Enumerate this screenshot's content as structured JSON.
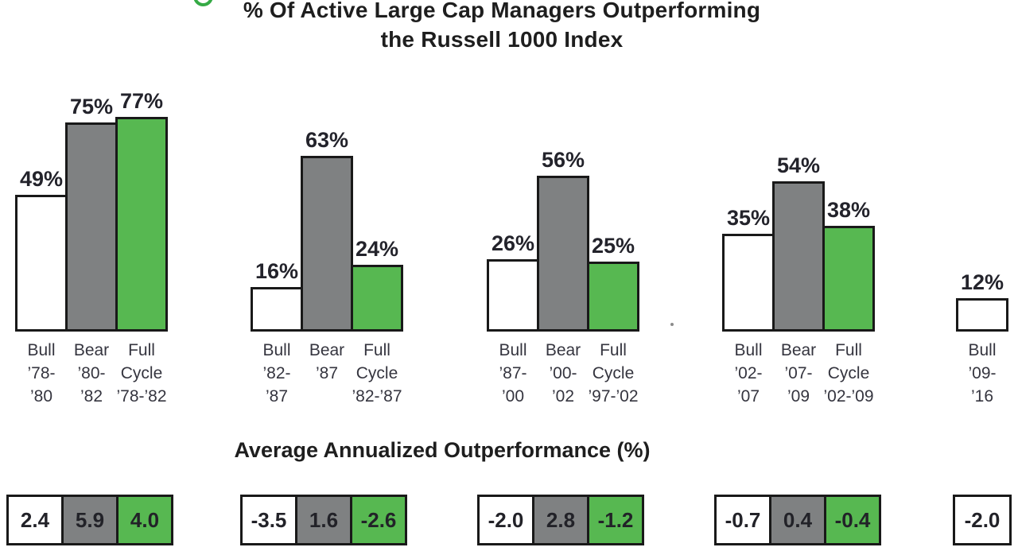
{
  "page": {
    "title_line1": "% Of Active Large Cap Managers Outperforming",
    "title_line2": "the Russell 1000 Index",
    "bottom_section_title": "Average Annualized Outperformance (%)"
  },
  "chart_data": {
    "type": "bar",
    "title": "% Of Active Large Cap Managers Outperforming the Russell 1000 Index",
    "bottom_row_title": "Average Annualized Outperformance (%)",
    "unit": "%",
    "ylim": [
      0,
      100
    ],
    "grid": false,
    "legend_position": "none",
    "series_colors": {
      "bull": "#ffffff",
      "bear": "#7f8182",
      "full_cycle": "#57b851"
    },
    "bar_border_color": "#191919",
    "groups": [
      {
        "name": "’78-’82 cycle",
        "bars": [
          {
            "series": "Bull",
            "label_lines": [
              "Bull",
              "’78-",
              "’80"
            ],
            "value": 49,
            "value_label": "49%",
            "color": "bull",
            "avg_outperformance": "2.4"
          },
          {
            "series": "Bear",
            "label_lines": [
              "Bear",
              "’80-",
              "’82"
            ],
            "value": 75,
            "value_label": "75%",
            "color": "bear",
            "avg_outperformance": "5.9"
          },
          {
            "series": "Full Cycle",
            "label_lines": [
              "Full",
              "Cycle",
              "’78-’82"
            ],
            "value": 77,
            "value_label": "77%",
            "color": "full_cycle",
            "avg_outperformance": "4.0"
          }
        ]
      },
      {
        "name": "’82-’87 cycle",
        "bars": [
          {
            "series": "Bull",
            "label_lines": [
              "Bull",
              "’82-",
              "’87"
            ],
            "value": 16,
            "value_label": "16%",
            "color": "bull",
            "avg_outperformance": "-3.5"
          },
          {
            "series": "Bear",
            "label_lines": [
              "Bear",
              "’87"
            ],
            "value": 63,
            "value_label": "63%",
            "color": "bear",
            "avg_outperformance": "1.6"
          },
          {
            "series": "Full Cycle",
            "label_lines": [
              "Full",
              "Cycle",
              "’82-’87"
            ],
            "value": 24,
            "value_label": "24%",
            "color": "full_cycle",
            "avg_outperformance": "-2.6"
          }
        ]
      },
      {
        "name": "’97-’02 cycle",
        "bars": [
          {
            "series": "Bull",
            "label_lines": [
              "Bull",
              "’87-",
              "’00"
            ],
            "value": 26,
            "value_label": "26%",
            "color": "bull",
            "avg_outperformance": "-2.0"
          },
          {
            "series": "Bear",
            "label_lines": [
              "Bear",
              "’00-",
              "’02"
            ],
            "value": 56,
            "value_label": "56%",
            "color": "bear",
            "avg_outperformance": "2.8"
          },
          {
            "series": "Full Cycle",
            "label_lines": [
              "Full",
              "Cycle",
              "’97-’02"
            ],
            "value": 25,
            "value_label": "25%",
            "color": "full_cycle",
            "avg_outperformance": "-1.2"
          }
        ]
      },
      {
        "name": "’02-’09 cycle",
        "bars": [
          {
            "series": "Bull",
            "label_lines": [
              "Bull",
              "’02-",
              "’07"
            ],
            "value": 35,
            "value_label": "35%",
            "color": "bull",
            "avg_outperformance": "-0.7"
          },
          {
            "series": "Bear",
            "label_lines": [
              "Bear",
              "’07-",
              "’09"
            ],
            "value": 54,
            "value_label": "54%",
            "color": "bear",
            "avg_outperformance": "0.4"
          },
          {
            "series": "Full Cycle",
            "label_lines": [
              "Full",
              "Cycle",
              "’02-’09"
            ],
            "value": 38,
            "value_label": "38%",
            "color": "full_cycle",
            "avg_outperformance": "-0.4"
          }
        ]
      },
      {
        "name": "’09-’16 bull",
        "bars": [
          {
            "series": "Bull",
            "label_lines": [
              "Bull",
              "’09-",
              "’16"
            ],
            "value": 12,
            "value_label": "12%",
            "color": "bull",
            "avg_outperformance": "-2.0"
          }
        ]
      }
    ]
  }
}
